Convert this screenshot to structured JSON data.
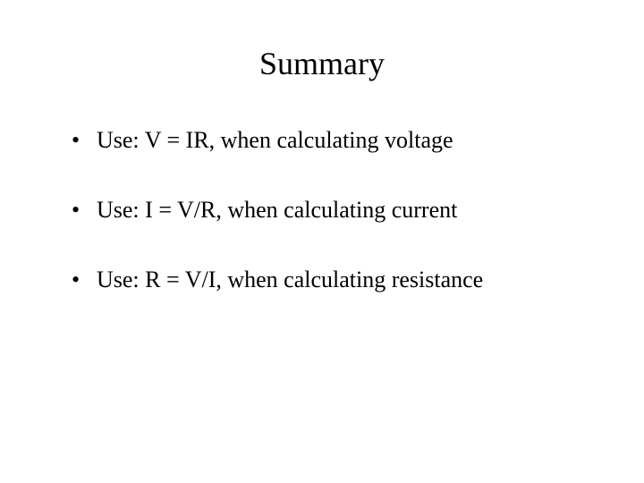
{
  "slide": {
    "title": "Summary",
    "bullets": [
      "Use: V = IR, when calculating voltage",
      "Use: I = V/R, when calculating current",
      "Use: R = V/I, when calculating resistance"
    ],
    "styling": {
      "background_color": "#ffffff",
      "text_color": "#000000",
      "font_family": "Times New Roman",
      "title_fontsize": 36,
      "bullet_fontsize": 26,
      "title_align": "center",
      "bullet_spacing": 48
    }
  }
}
